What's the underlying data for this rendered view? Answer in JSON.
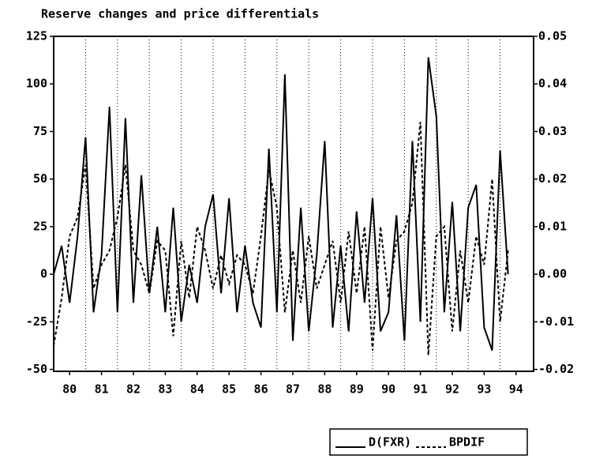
{
  "chart_data": {
    "type": "line",
    "title": "Reserve changes and price differentials",
    "x": [
      80,
      80.25,
      80.5,
      80.75,
      81,
      81.25,
      81.5,
      81.75,
      82,
      82.25,
      82.5,
      82.75,
      83,
      83.25,
      83.5,
      83.75,
      84,
      84.25,
      84.5,
      84.75,
      85,
      85.25,
      85.5,
      85.75,
      86,
      86.25,
      86.5,
      86.75,
      87,
      87.25,
      87.5,
      87.75,
      88,
      88.25,
      88.5,
      88.75,
      89,
      89.25,
      89.5,
      89.75,
      90,
      90.25,
      90.5,
      90.75,
      91,
      91.25,
      91.5,
      91.75,
      92,
      92.25,
      92.5,
      92.75,
      93,
      93.25,
      93.5,
      93.75,
      94,
      94.25
    ],
    "series": [
      {
        "name": "D(FXR)",
        "color": "#000000",
        "dash": "solid",
        "values": [
          0,
          15,
          -15,
          20,
          72,
          -20,
          10,
          88,
          -20,
          82,
          -15,
          52,
          -10,
          25,
          -20,
          35,
          -25,
          5,
          -15,
          25,
          42,
          -10,
          40,
          -20,
          15,
          -15,
          -28,
          66,
          -20,
          105,
          -35,
          35,
          -30,
          10,
          70,
          -28,
          15,
          -30,
          33,
          -15,
          40,
          -30,
          -20,
          31,
          -35,
          70,
          -25,
          114,
          83,
          -20,
          38,
          -30,
          35,
          47,
          -28,
          -40,
          65,
          0
        ]
      },
      {
        "name": "BPDIF",
        "color": "#000000",
        "dash": "dashed",
        "axis": "y2",
        "values": [
          -0.015,
          -0.005,
          0.008,
          0.012,
          0.023,
          -0.003,
          0.002,
          0.005,
          0.012,
          0.023,
          0.005,
          0.002,
          -0.004,
          0.007,
          0.005,
          -0.013,
          0.007,
          -0.005,
          0.01,
          0.005,
          -0.003,
          0.004,
          -0.002,
          0.004,
          0.002,
          -0.004,
          0.008,
          0.022,
          0.014,
          -0.008,
          0.005,
          -0.006,
          0.008,
          -0.003,
          0.002,
          0.007,
          -0.006,
          0.009,
          -0.004,
          0.01,
          -0.016,
          0.01,
          -0.005,
          0.007,
          0.009,
          0.015,
          0.032,
          -0.017,
          0.008,
          0.01,
          -0.012,
          0.005,
          -0.006,
          0.008,
          0.002,
          0.02,
          -0.01,
          0.005
        ]
      }
    ],
    "xlim": [
      80,
      95.05
    ],
    "xticks": [
      {
        "value": 80.5,
        "label": "80"
      },
      {
        "value": 81.5,
        "label": "81"
      },
      {
        "value": 82.5,
        "label": "82"
      },
      {
        "value": 83.5,
        "label": "83"
      },
      {
        "value": 84.5,
        "label": "84"
      },
      {
        "value": 85.5,
        "label": "85"
      },
      {
        "value": 86.5,
        "label": "86"
      },
      {
        "value": 87.5,
        "label": "87"
      },
      {
        "value": 88.5,
        "label": "88"
      },
      {
        "value": 89.5,
        "label": "89"
      },
      {
        "value": 90.5,
        "label": "90"
      },
      {
        "value": 91.5,
        "label": "91"
      },
      {
        "value": 92.5,
        "label": "92"
      },
      {
        "value": 93.5,
        "label": "93"
      },
      {
        "value": 94.5,
        "label": "94"
      }
    ],
    "xgrid": [
      81,
      82,
      83,
      84,
      85,
      86,
      87,
      88,
      89,
      90,
      91,
      92,
      93,
      94
    ],
    "ylim": [
      -51,
      125
    ],
    "yticks": [
      125,
      100,
      75,
      50,
      25,
      0,
      -25,
      -50
    ],
    "y2lim": [
      -0.0204,
      0.05
    ],
    "y2ticks": [
      0.05,
      0.04,
      0.03,
      0.02,
      0.01,
      {
        "value": 0,
        "label": "0.00"
      },
      -0.01,
      -0.02
    ],
    "legend": "bottom-right"
  }
}
